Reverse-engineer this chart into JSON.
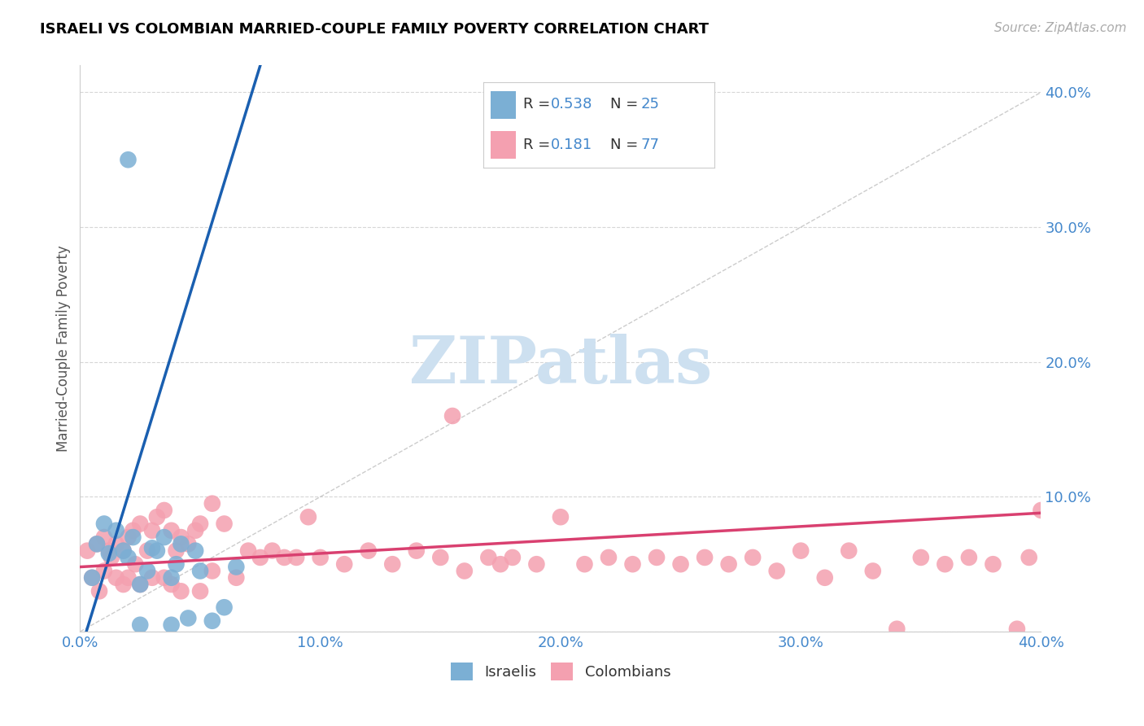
{
  "title": "ISRAELI VS COLOMBIAN MARRIED-COUPLE FAMILY POVERTY CORRELATION CHART",
  "source": "Source: ZipAtlas.com",
  "ylabel": "Married-Couple Family Poverty",
  "watermark": "ZIPatlas",
  "xlim": [
    0.0,
    0.4
  ],
  "ylim": [
    0.0,
    0.42
  ],
  "xticks": [
    0.0,
    0.1,
    0.2,
    0.3,
    0.4
  ],
  "yticks": [
    0.0,
    0.1,
    0.2,
    0.3,
    0.4
  ],
  "xtick_labels": [
    "0.0%",
    "10.0%",
    "20.0%",
    "30.0%",
    "40.0%"
  ],
  "ytick_labels": [
    "",
    "10.0%",
    "20.0%",
    "30.0%",
    "40.0%"
  ],
  "israeli_color": "#7bafd4",
  "colombian_color": "#f4a0b0",
  "israeli_line_color": "#1a5fb0",
  "colombian_line_color": "#d94070",
  "diagonal_color": "#aaaaaa",
  "background_color": "#ffffff",
  "grid_color": "#cccccc",
  "title_color": "#000000",
  "tick_label_color": "#4488cc",
  "israeli_line_slope": 5.8,
  "israeli_line_intercept": -0.015,
  "colombian_line_slope": 0.1,
  "colombian_line_intercept": 0.048,
  "israeli_x": [
    0.005,
    0.007,
    0.01,
    0.012,
    0.015,
    0.018,
    0.02,
    0.022,
    0.025,
    0.028,
    0.03,
    0.032,
    0.035,
    0.038,
    0.04,
    0.042,
    0.045,
    0.048,
    0.05,
    0.055,
    0.06,
    0.065,
    0.02,
    0.025,
    0.038
  ],
  "israeli_y": [
    0.04,
    0.065,
    0.08,
    0.058,
    0.075,
    0.06,
    0.055,
    0.07,
    0.035,
    0.045,
    0.062,
    0.06,
    0.07,
    0.04,
    0.05,
    0.065,
    0.01,
    0.06,
    0.045,
    0.008,
    0.018,
    0.048,
    0.35,
    0.005,
    0.005
  ],
  "colombian_x": [
    0.003,
    0.005,
    0.007,
    0.008,
    0.01,
    0.01,
    0.012,
    0.013,
    0.015,
    0.015,
    0.018,
    0.018,
    0.02,
    0.02,
    0.022,
    0.023,
    0.025,
    0.025,
    0.028,
    0.03,
    0.03,
    0.032,
    0.035,
    0.035,
    0.038,
    0.038,
    0.04,
    0.042,
    0.042,
    0.045,
    0.048,
    0.05,
    0.05,
    0.055,
    0.055,
    0.06,
    0.065,
    0.07,
    0.075,
    0.08,
    0.085,
    0.09,
    0.095,
    0.1,
    0.11,
    0.12,
    0.13,
    0.14,
    0.15,
    0.155,
    0.16,
    0.17,
    0.175,
    0.18,
    0.19,
    0.2,
    0.21,
    0.22,
    0.23,
    0.24,
    0.25,
    0.26,
    0.27,
    0.28,
    0.29,
    0.3,
    0.31,
    0.32,
    0.33,
    0.34,
    0.35,
    0.36,
    0.37,
    0.38,
    0.39,
    0.395,
    0.4
  ],
  "colombian_y": [
    0.06,
    0.04,
    0.065,
    0.03,
    0.07,
    0.045,
    0.06,
    0.055,
    0.065,
    0.04,
    0.06,
    0.035,
    0.07,
    0.04,
    0.075,
    0.05,
    0.08,
    0.035,
    0.06,
    0.075,
    0.04,
    0.085,
    0.09,
    0.04,
    0.075,
    0.035,
    0.06,
    0.07,
    0.03,
    0.065,
    0.075,
    0.08,
    0.03,
    0.095,
    0.045,
    0.08,
    0.04,
    0.06,
    0.055,
    0.06,
    0.055,
    0.055,
    0.085,
    0.055,
    0.05,
    0.06,
    0.05,
    0.06,
    0.055,
    0.16,
    0.045,
    0.055,
    0.05,
    0.055,
    0.05,
    0.085,
    0.05,
    0.055,
    0.05,
    0.055,
    0.05,
    0.055,
    0.05,
    0.055,
    0.045,
    0.06,
    0.04,
    0.06,
    0.045,
    0.002,
    0.055,
    0.05,
    0.055,
    0.05,
    0.002,
    0.055,
    0.09
  ]
}
